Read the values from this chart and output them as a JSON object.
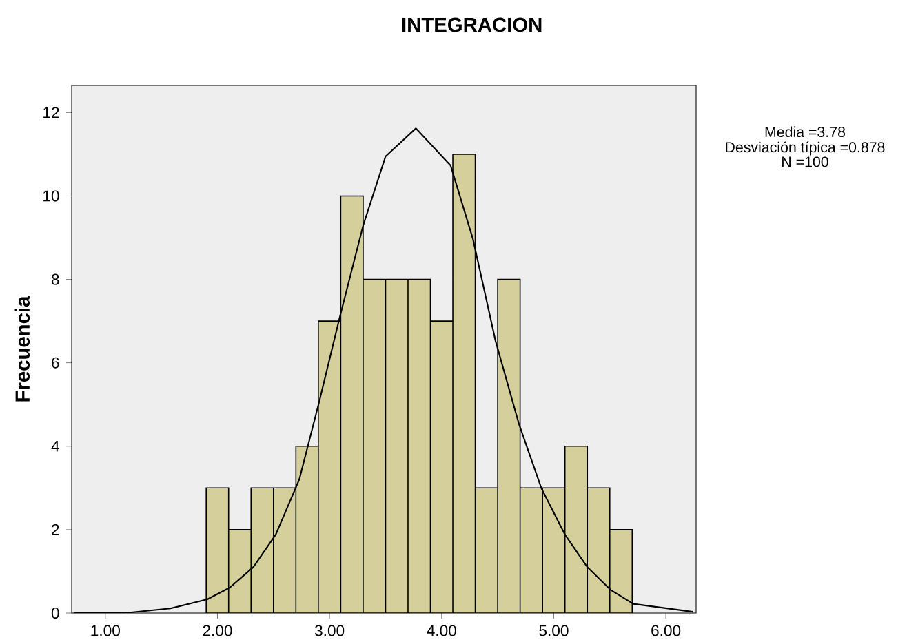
{
  "chart_data": {
    "type": "histogram",
    "title": "INTEGRACION",
    "ylabel": "Frecuencia",
    "bins": [
      1.9,
      2.1,
      2.3,
      2.5,
      2.7,
      2.9,
      3.1,
      3.3,
      3.5,
      3.7,
      3.9,
      4.1,
      4.3,
      4.5,
      4.7,
      4.9,
      5.1,
      5.3,
      5.5,
      5.7
    ],
    "values": [
      3,
      2,
      3,
      3,
      4,
      7,
      10,
      8,
      8,
      8,
      7,
      11,
      3,
      8,
      3,
      3,
      4,
      3,
      2
    ],
    "color": "#d4cf9b",
    "series": [
      {
        "type": "line",
        "color": "#000000",
        "x": [
          0.72,
          1.17,
          1.58,
          1.91,
          2.11,
          2.32,
          2.52,
          2.73,
          2.91,
          3.09,
          3.3,
          3.5,
          3.77,
          4.08,
          4.28,
          4.48,
          4.69,
          4.89,
          5.1,
          5.3,
          5.51,
          5.71,
          6.24
        ],
        "values": [
          0,
          0,
          0.11,
          0.33,
          0.61,
          1.1,
          1.88,
          3.2,
          5.09,
          7.08,
          9.29,
          10.95,
          11.62,
          10.73,
          8.96,
          6.53,
          4.53,
          2.99,
          1.88,
          1.1,
          0.55,
          0.22,
          0.03
        ]
      }
    ],
    "xlim": [
      0.7,
      6.27
    ],
    "ylim": [
      0,
      12.65
    ],
    "xticks": [
      {
        "value": 1,
        "label": "1.00"
      },
      {
        "value": 2,
        "label": "2.00"
      },
      {
        "value": 3,
        "label": "3.00"
      },
      {
        "value": 4,
        "label": "4.00"
      },
      {
        "value": 5,
        "label": "5.00"
      },
      {
        "value": 6,
        "label": "6.00"
      }
    ],
    "yticks": [
      0,
      2,
      4,
      6,
      8,
      10,
      12
    ],
    "annotations": [
      "Media =3.78",
      "Desviación típica =0.878",
      "N =100"
    ]
  }
}
